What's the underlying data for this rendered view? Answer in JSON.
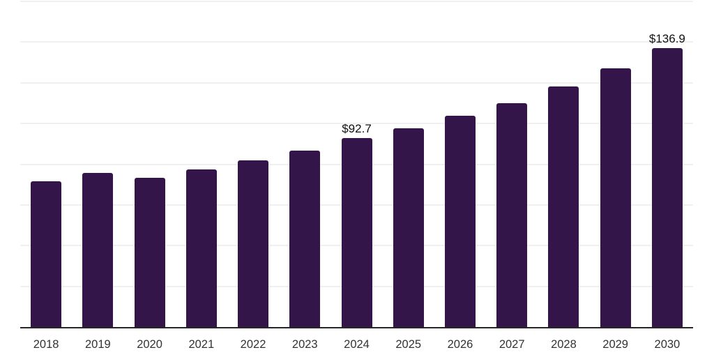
{
  "chart_data": {
    "type": "bar",
    "title": "",
    "xlabel": "",
    "ylabel": "",
    "categories": [
      "2018",
      "2019",
      "2020",
      "2021",
      "2022",
      "2023",
      "2024",
      "2025",
      "2026",
      "2027",
      "2028",
      "2029",
      "2030"
    ],
    "values": [
      71.6,
      75.8,
      73.4,
      77.5,
      81.9,
      86.7,
      92.7,
      97.8,
      103.7,
      110.1,
      118.1,
      127.0,
      136.9
    ],
    "point_labels": [
      {
        "category": "2024",
        "text": "$92.7"
      },
      {
        "category": "2030",
        "text": "$136.9"
      }
    ],
    "ylim": [
      0,
      160
    ],
    "grid_step": 20,
    "grid": true,
    "y_tick_labels_visible": false,
    "legend_position": "none",
    "colors": {
      "bar": "#34154a",
      "axis_line": "#262626",
      "gridline": "#f0f0f0",
      "tick_label": "#333333",
      "value_label": "#111111",
      "background": "#ffffff"
    }
  }
}
